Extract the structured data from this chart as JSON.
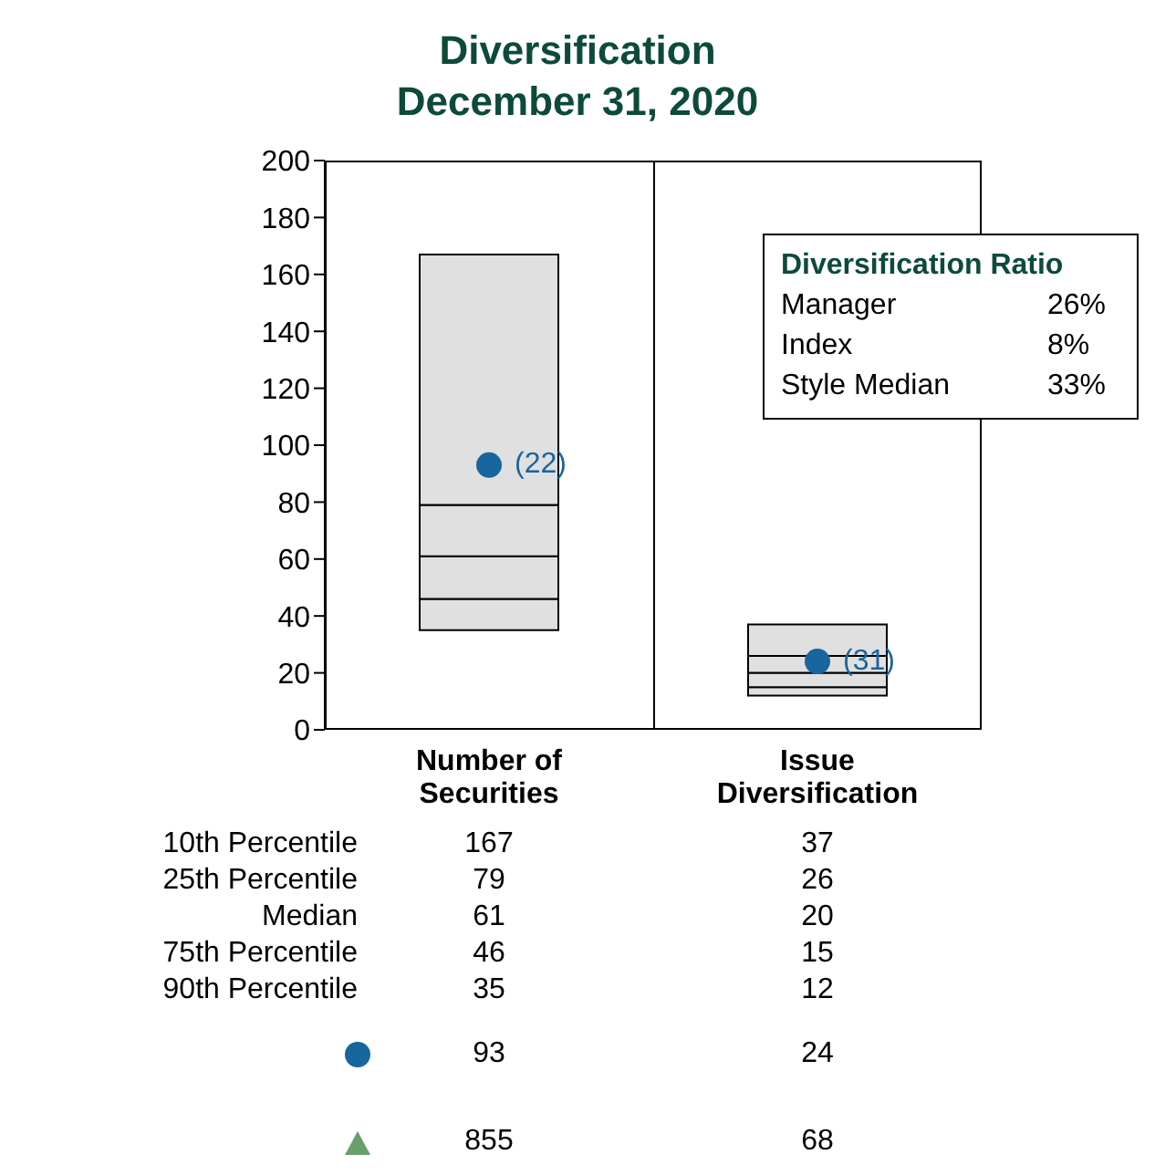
{
  "chart_data": {
    "type": "bar",
    "title": "Diversification",
    "subtitle": "December 31, 2020",
    "categories": [
      "Number of Securities",
      "Issue Diversification"
    ],
    "ylim": [
      0,
      200
    ],
    "yticks": [
      0,
      20,
      40,
      60,
      80,
      100,
      120,
      140,
      160,
      180,
      200
    ],
    "series": [
      {
        "color": "#e0e0e0",
        "base": [
          35,
          12
        ],
        "values": [
          11,
          3
        ]
      },
      {
        "color": "#e0e0e0",
        "base": [
          46,
          15
        ],
        "values": [
          15,
          5
        ]
      },
      {
        "color": "#e0e0e0",
        "base": [
          61,
          20
        ],
        "values": [
          18,
          6
        ]
      },
      {
        "color": "#e0e0e0",
        "base": [
          79,
          26
        ],
        "values": [
          88,
          11
        ]
      },
      {
        "type": "scatter",
        "color": "#17669e",
        "marker": "circle",
        "values": [
          93,
          24
        ]
      }
    ],
    "annotations": [
      "Diversification Ratio",
      "Manager",
      "26%",
      "Index",
      "8%",
      "Style Median",
      "33%",
      "10th Percentile",
      "25th Percentile",
      "Median",
      "75th Percentile",
      "90th Percentile",
      "167",
      "37",
      "79",
      "26",
      "61",
      "20",
      "46",
      "15",
      "35",
      "12",
      "93",
      "24",
      "855",
      "68",
      {
        "text": "(22)",
        "x": "Number of Securities",
        "y": 93
      },
      {
        "text": "(31)",
        "x": "Issue Diversification",
        "y": 24
      }
    ]
  }
}
